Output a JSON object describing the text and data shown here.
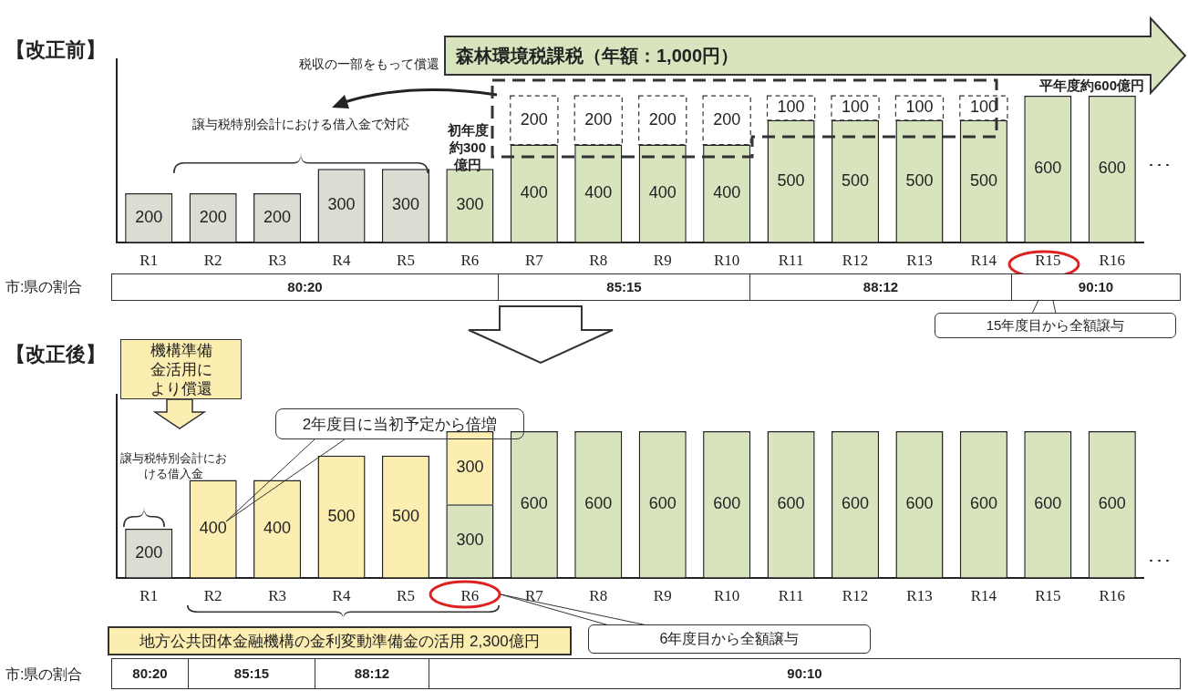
{
  "chart_data": [
    {
      "type": "bar",
      "title": "【改正前】",
      "categories": [
        "R1",
        "R2",
        "R3",
        "R4",
        "R5",
        "R6",
        "R7",
        "R8",
        "R9",
        "R10",
        "R11",
        "R12",
        "R13",
        "R14",
        "R15",
        "R16"
      ],
      "stacked": true,
      "data_labels": true,
      "tick_labels": "x",
      "series": [
        {
          "colors": [
            "#dcdcd2",
            "#dcdcd2",
            "#dcdcd2",
            "#dcdcd2",
            "#dcdcd2",
            "#d7e4bd",
            "#d7e4bd",
            "#d7e4bd",
            "#d7e4bd",
            "#d7e4bd",
            "#d7e4bd",
            "#d7e4bd",
            "#d7e4bd",
            "#d7e4bd",
            "#d7e4bd",
            "#d7e4bd"
          ],
          "values": [
            200,
            200,
            200,
            300,
            300,
            300,
            400,
            400,
            400,
            400,
            500,
            500,
            500,
            500,
            600,
            600
          ]
        },
        {
          "color": "#ffffff",
          "line_style": "dashed",
          "values": [
            null,
            null,
            null,
            null,
            null,
            null,
            200,
            200,
            200,
            200,
            100,
            100,
            100,
            100,
            null,
            null
          ]
        }
      ],
      "annotations": [
        "森林環境税課税（年額：1,000円）",
        "税収の一部をもって償還",
        "譲与税特別会計における借入金で対応",
        "初年度約300億円",
        "平年度約600億円",
        "･･･",
        "市:県の割合",
        "80:20",
        "85:15",
        "88:12",
        "90:10",
        "15年度目から全額譲与"
      ]
    },
    {
      "type": "bar",
      "title": "【改正後】",
      "categories": [
        "R1",
        "R2",
        "R3",
        "R4",
        "R5",
        "R6",
        "R7",
        "R8",
        "R9",
        "R10",
        "R11",
        "R12",
        "R13",
        "R14",
        "R15",
        "R16"
      ],
      "stacked": true,
      "data_labels": true,
      "tick_labels": "x",
      "series": [
        {
          "colors": [
            "#dcdcd2",
            "#fbeeb0",
            "#fbeeb0",
            "#fbeeb0",
            "#fbeeb0",
            "#d7e4bd",
            "#d7e4bd",
            "#d7e4bd",
            "#d7e4bd",
            "#d7e4bd",
            "#d7e4bd",
            "#d7e4bd",
            "#d7e4bd",
            "#d7e4bd",
            "#d7e4bd",
            "#d7e4bd"
          ],
          "values": [
            200,
            400,
            400,
            500,
            500,
            300,
            600,
            600,
            600,
            600,
            600,
            600,
            600,
            600,
            600,
            600
          ]
        },
        {
          "color": "#fbeeb0",
          "values": [
            null,
            null,
            null,
            null,
            null,
            300,
            null,
            null,
            null,
            null,
            null,
            null,
            null,
            null,
            null,
            null
          ]
        }
      ],
      "annotations": [
        "機構準備金活用により償還",
        "譲与税特別会計における借入金",
        "2年度目に当初予定から倍増",
        "･･･",
        "地方公共団体金融機構の金利変動準備金の活用 2,300億円",
        "6年度目から全額譲与",
        "市:県の割合",
        "80:20",
        "85:15",
        "88:12",
        "90:10"
      ]
    }
  ]
}
